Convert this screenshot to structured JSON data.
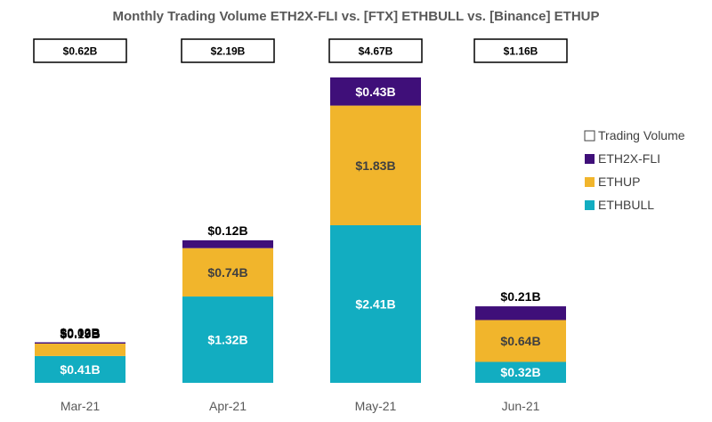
{
  "chart_data": {
    "type": "bar",
    "stacked": true,
    "title": "Monthly Trading Volume ETH2X-FLI vs. [FTX] ETHBULL vs. [Binance] ETHUP",
    "categories": [
      "Mar-21",
      "Apr-21",
      "May-21",
      "Jun-21"
    ],
    "series": [
      {
        "name": "ETHBULL",
        "color": "#12ADC1",
        "values": [
          0.41,
          1.32,
          2.41,
          0.32
        ],
        "labels": [
          "$0.41B",
          "$1.32B",
          "$2.41B",
          "$0.32B"
        ]
      },
      {
        "name": "ETHUP",
        "color": "#F1B52C",
        "values": [
          0.19,
          0.74,
          1.83,
          0.64
        ],
        "labels": [
          "$0.19B",
          "$0.74B",
          "$1.83B",
          "$0.64B"
        ]
      },
      {
        "name": "ETH2X-FLI",
        "color": "#3F0F79",
        "values": [
          0.02,
          0.12,
          0.43,
          0.21
        ],
        "labels": [
          "$0.02B",
          "$0.12B",
          "$0.43B",
          "$0.21B"
        ]
      }
    ],
    "totals": {
      "name": "Trading Volume",
      "values": [
        0.62,
        2.19,
        4.67,
        1.16
      ],
      "labels": [
        "$0.62B",
        "$2.19B",
        "$4.67B",
        "$1.16B"
      ]
    },
    "legend": {
      "placement": "right",
      "items": [
        {
          "name": "Trading Volume",
          "color": "#ffffff"
        },
        {
          "name": "ETH2X-FLI",
          "color": "#3F0F79"
        },
        {
          "name": "ETHUP",
          "color": "#F1B52C"
        },
        {
          "name": "ETHBULL",
          "color": "#12ADC1"
        }
      ]
    },
    "ylim": [
      0,
      4.67
    ],
    "grid": false,
    "xlabel": "",
    "ylabel": ""
  }
}
